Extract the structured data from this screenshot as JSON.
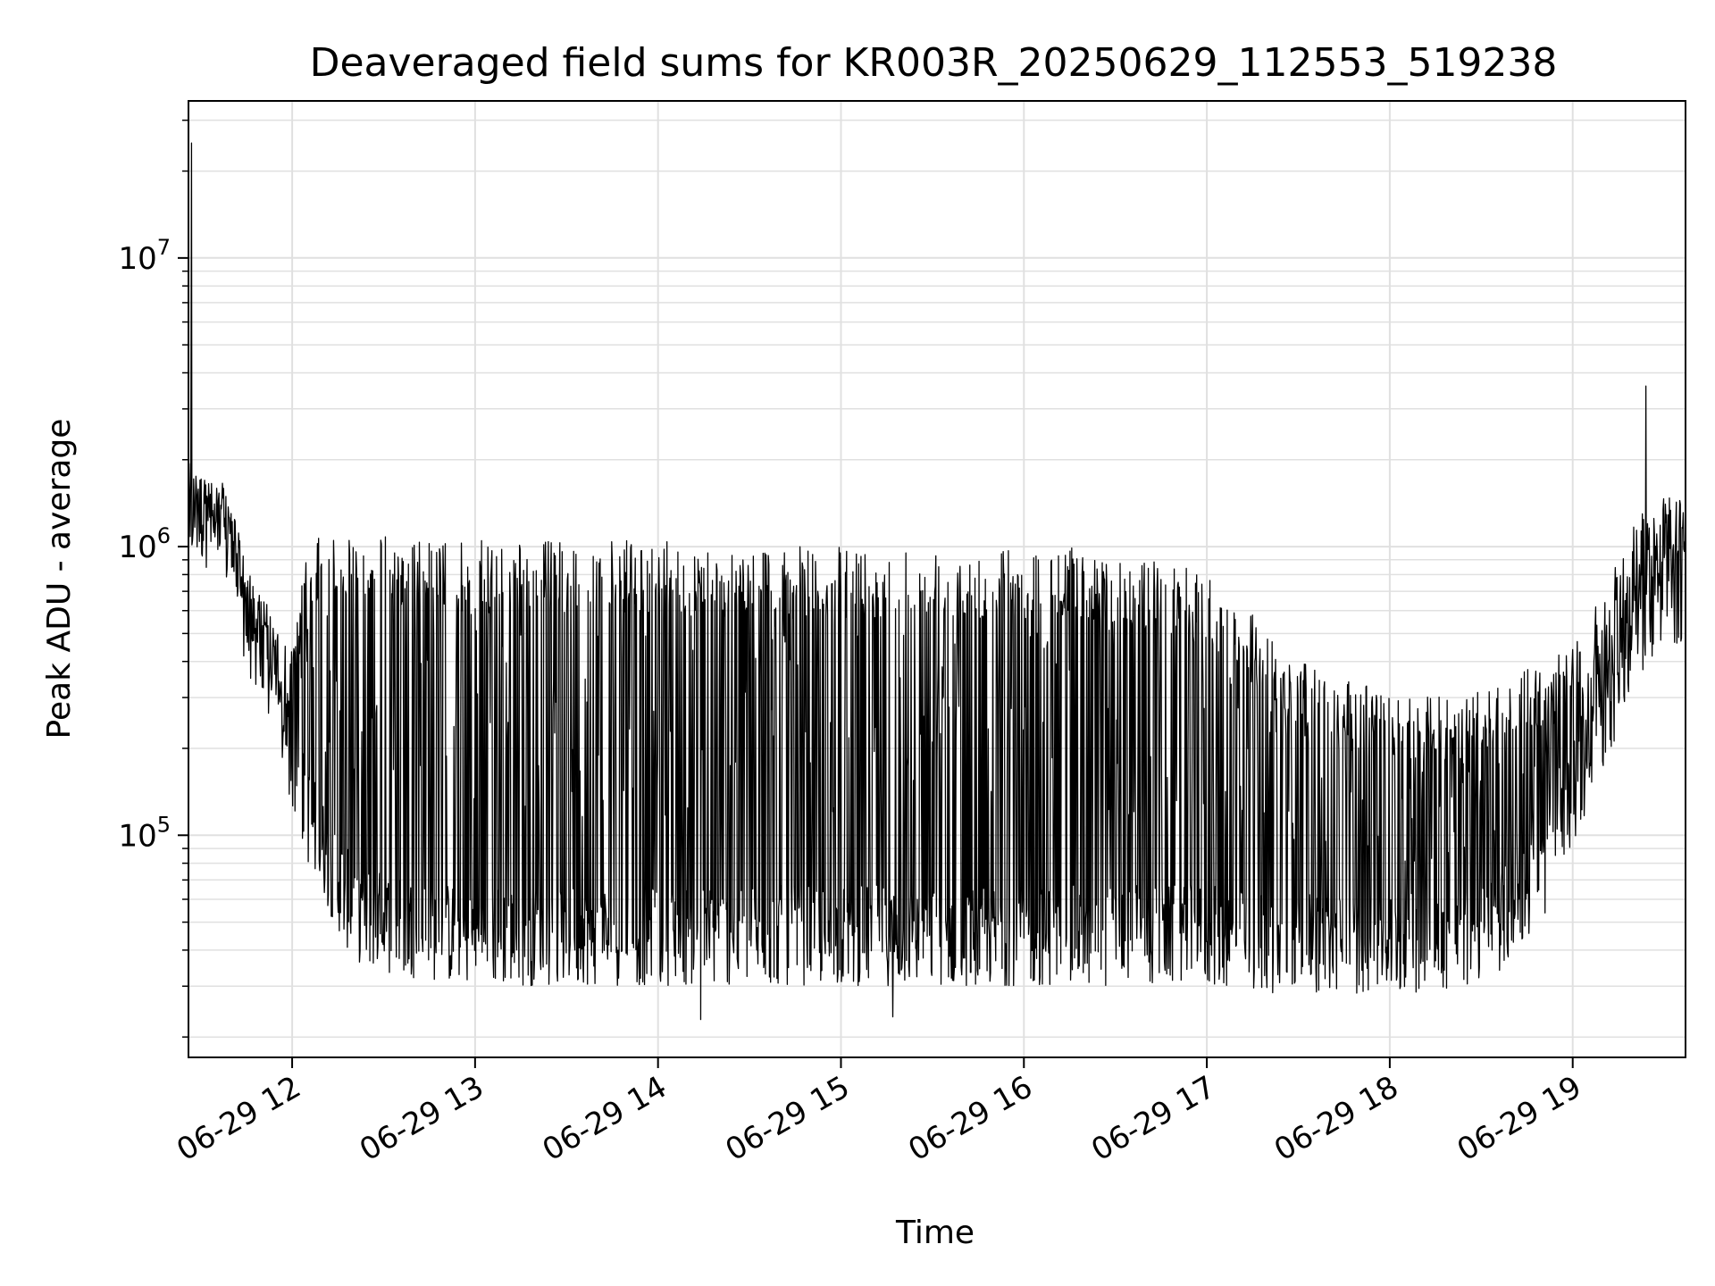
{
  "chart_data": {
    "type": "line",
    "title": "Deaveraged field sums for KR003R_20250629_112553_519238",
    "xlabel": "Time",
    "ylabel": "Peak ADU - average",
    "yscale": "log",
    "ylim": [
      17000,
      35000000
    ],
    "xlim": [
      "2025-06-29 11:26",
      "2025-06-29 19:37"
    ],
    "grid": true,
    "line_color": "#000000",
    "grid_color": "#e0e0e0",
    "x_ticks": [
      {
        "t": "2025-06-29 12:00",
        "label": "06-29 12"
      },
      {
        "t": "2025-06-29 13:00",
        "label": "06-29 13"
      },
      {
        "t": "2025-06-29 14:00",
        "label": "06-29 14"
      },
      {
        "t": "2025-06-29 15:00",
        "label": "06-29 15"
      },
      {
        "t": "2025-06-29 16:00",
        "label": "06-29 16"
      },
      {
        "t": "2025-06-29 17:00",
        "label": "06-29 17"
      },
      {
        "t": "2025-06-29 18:00",
        "label": "06-29 18"
      },
      {
        "t": "2025-06-29 19:00",
        "label": "06-29 19"
      }
    ],
    "y_ticks": [
      {
        "value": 100000,
        "base": "10",
        "exp": "5"
      },
      {
        "value": 1000000,
        "base": "10",
        "exp": "6"
      },
      {
        "value": 10000000,
        "base": "10",
        "exp": "7"
      }
    ],
    "series": [
      {
        "x": [
          "2025-06-29 11:26",
          "2025-06-29 11:30",
          "2025-06-29 11:35",
          "2025-06-29 11:40",
          "2025-06-29 11:45",
          "2025-06-29 11:50",
          "2025-06-29 11:55",
          "2025-06-29 12:00",
          "2025-06-29 12:05",
          "2025-06-29 12:10",
          "2025-06-29 12:15",
          "2025-06-29 12:20",
          "2025-06-29 12:30",
          "2025-06-29 12:40",
          "2025-06-29 12:50",
          "2025-06-29 13:00",
          "2025-06-29 13:15",
          "2025-06-29 13:30",
          "2025-06-29 13:45",
          "2025-06-29 14:00",
          "2025-06-29 14:15",
          "2025-06-29 14:30",
          "2025-06-29 14:45",
          "2025-06-29 15:00",
          "2025-06-29 15:15",
          "2025-06-29 15:30",
          "2025-06-29 15:45",
          "2025-06-29 16:00",
          "2025-06-29 16:15",
          "2025-06-29 16:30",
          "2025-06-29 16:45",
          "2025-06-29 17:00",
          "2025-06-29 17:15",
          "2025-06-29 17:30",
          "2025-06-29 17:45",
          "2025-06-29 18:00",
          "2025-06-29 18:15",
          "2025-06-29 18:30",
          "2025-06-29 18:40",
          "2025-06-29 18:50",
          "2025-06-29 19:00",
          "2025-06-29 19:10",
          "2025-06-29 19:20",
          "2025-06-29 19:30",
          "2025-06-29 19:37"
        ],
        "base": [
          1300000,
          1300000,
          1200000,
          1000000,
          550000,
          420000,
          300000,
          180000,
          120000,
          90000,
          70000,
          55000,
          50000,
          48000,
          46000,
          45000,
          45000,
          45000,
          45000,
          45000,
          45000,
          45000,
          45000,
          45000,
          45000,
          45000,
          45000,
          45000,
          45000,
          45000,
          45000,
          45000,
          43000,
          42000,
          42000,
          42000,
          43000,
          45000,
          55000,
          75000,
          130000,
          250000,
          480000,
          650000,
          700000
        ],
        "peak": [
          1800000,
          1800000,
          1700000,
          1500000,
          900000,
          700000,
          550000,
          450000,
          1000000,
          1100000,
          1150000,
          1150000,
          1100000,
          1050000,
          1050000,
          1050000,
          1050000,
          1050000,
          1050000,
          1050000,
          1000000,
          1000000,
          1000000,
          1000000,
          1000000,
          1000000,
          1000000,
          1000000,
          1000000,
          950000,
          900000,
          800000,
          600000,
          400000,
          350000,
          320000,
          300000,
          320000,
          350000,
          400000,
          450000,
          700000,
          1200000,
          1600000,
          1700000
        ],
        "notable": [
          {
            "t": "2025-06-29 11:27",
            "value": 25000000
          },
          {
            "t": "2025-06-29 14:14",
            "value": 23000
          },
          {
            "t": "2025-06-29 15:17",
            "value": 23500
          },
          {
            "t": "2025-06-29 19:24",
            "value": 3600000
          }
        ]
      }
    ]
  }
}
